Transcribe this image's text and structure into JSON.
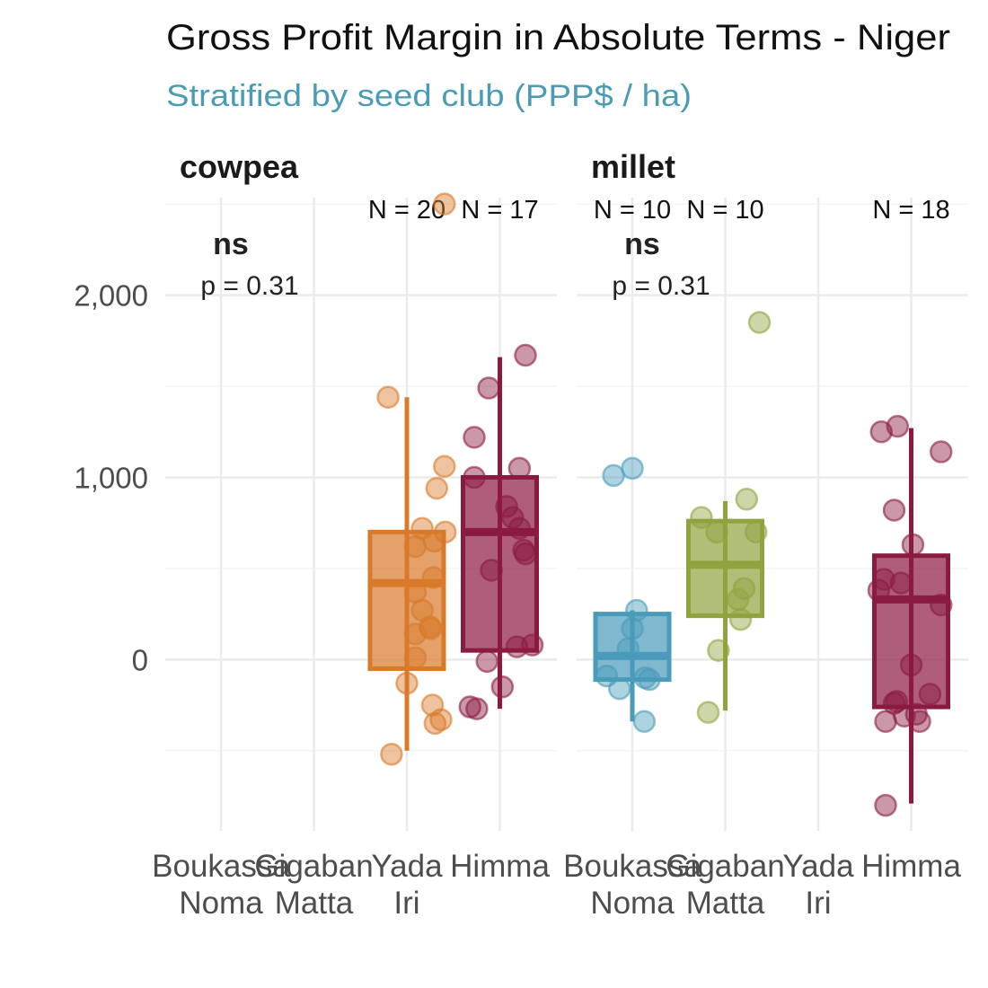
{
  "chart_data": {
    "type": "box",
    "title": "Gross Profit Margin in Absolute Terms - Niger",
    "subtitle": "Stratified by seed club (PPP$ / ha)",
    "xlabel": "",
    "ylabel": "",
    "ylim": [
      -940,
      2560
    ],
    "y_ticks": [
      0,
      1000,
      2000
    ],
    "y_tick_labels": [
      "0",
      "1,000",
      "2,000"
    ],
    "grid": true,
    "categories": [
      {
        "line1": "Boukassa",
        "line2": "Noma"
      },
      {
        "line1": "Gigaban",
        "line2": "Matta"
      },
      {
        "line1": "Yada",
        "line2": "Iri"
      },
      {
        "line1": "Himma",
        "line2": ""
      }
    ],
    "colors": {
      "Boukassa Noma": "#4a9bbb",
      "Gigaban Matta": "#8fa33f",
      "Yada Iri": "#d9792a",
      "Himma": "#8b1a42",
      "title": "#111111",
      "subtitle": "#4a9bb3",
      "grid": "#ebebeb",
      "axis_text": "#4d4d4d"
    },
    "panels": [
      {
        "name": "cowpea",
        "stat_label": "ns",
        "p_label": "p = 0.31",
        "groups": [
          {
            "category": "Yada Iri",
            "n_label": "N = 20",
            "whisker_low": -500,
            "q1": -50,
            "median": 420,
            "q3": 700,
            "whisker_high": 1440,
            "points": [
              [
                0.44,
                2500
              ],
              [
                -0.22,
                1440
              ],
              [
                0.44,
                1060
              ],
              [
                0.35,
                940
              ],
              [
                0.18,
                720
              ],
              [
                0.45,
                700
              ],
              [
                0.32,
                650
              ],
              [
                0.1,
                620
              ],
              [
                0.31,
                450
              ],
              [
                0.1,
                370
              ],
              [
                0.18,
                270
              ],
              [
                0.27,
                180
              ],
              [
                0.28,
                170
              ],
              [
                0.1,
                140
              ],
              [
                0.1,
                10
              ],
              [
                0.0,
                -130
              ],
              [
                0.3,
                -250
              ],
              [
                0.33,
                -350
              ],
              [
                0.4,
                -330
              ],
              [
                -0.18,
                -520
              ]
            ]
          },
          {
            "category": "Himma",
            "n_label": "N = 17",
            "whisker_low": -270,
            "q1": 50,
            "median": 700,
            "q3": 1000,
            "whisker_high": 1660,
            "points": [
              [
                0.3,
                1670
              ],
              [
                -0.13,
                1490
              ],
              [
                -0.3,
                1220
              ],
              [
                0.23,
                1050
              ],
              [
                -0.3,
                1000
              ],
              [
                0.08,
                840
              ],
              [
                0.15,
                780
              ],
              [
                0.23,
                720
              ],
              [
                0.3,
                580
              ],
              [
                -0.1,
                490
              ],
              [
                0.2,
                70
              ],
              [
                0.38,
                80
              ],
              [
                -0.15,
                -10
              ],
              [
                0.03,
                -150
              ],
              [
                -0.35,
                -260
              ],
              [
                -0.27,
                -270
              ],
              [
                0.28,
                600
              ]
            ]
          }
        ]
      },
      {
        "name": "millet",
        "stat_label": "ns",
        "p_label": "p = 0.31",
        "groups": [
          {
            "category": "Boukassa Noma",
            "n_label": "N = 10",
            "whisker_low": -340,
            "q1": -110,
            "median": 20,
            "q3": 250,
            "whisker_high": 270,
            "points": [
              [
                -0.22,
                1010
              ],
              [
                0.0,
                1050
              ],
              [
                0.05,
                270
              ],
              [
                0.0,
                170
              ],
              [
                -0.05,
                60
              ],
              [
                -0.3,
                -90
              ],
              [
                -0.15,
                -160
              ],
              [
                0.15,
                -100
              ],
              [
                0.2,
                -110
              ],
              [
                0.14,
                -340
              ]
            ]
          },
          {
            "category": "Gigaban Matta",
            "n_label": "N = 10",
            "whisker_low": -280,
            "q1": 240,
            "median": 520,
            "q3": 760,
            "whisker_high": 870,
            "points": [
              [
                0.4,
                1850
              ],
              [
                -0.28,
                780
              ],
              [
                0.25,
                880
              ],
              [
                0.36,
                700
              ],
              [
                -0.1,
                700
              ],
              [
                0.22,
                390
              ],
              [
                0.15,
                330
              ],
              [
                0.18,
                220
              ],
              [
                -0.08,
                50
              ],
              [
                -0.2,
                -290
              ]
            ]
          },
          {
            "category": "Himma",
            "n_label": "N = 18",
            "whisker_low": -790,
            "q1": -260,
            "median": 330,
            "q3": 570,
            "whisker_high": 1270,
            "points": [
              [
                -0.35,
                1250
              ],
              [
                -0.16,
                1280
              ],
              [
                0.35,
                1140
              ],
              [
                -0.2,
                820
              ],
              [
                0.02,
                630
              ],
              [
                -0.32,
                440
              ],
              [
                -0.38,
                380
              ],
              [
                -0.12,
                420
              ],
              [
                0.35,
                300
              ],
              [
                0.0,
                -30
              ],
              [
                -0.3,
                -340
              ],
              [
                -0.2,
                -240
              ],
              [
                -0.08,
                -310
              ],
              [
                0.1,
                -340
              ],
              [
                0.22,
                -190
              ],
              [
                -0.17,
                -230
              ],
              [
                0.06,
                -300
              ],
              [
                -0.3,
                -800
              ]
            ]
          }
        ]
      }
    ]
  }
}
